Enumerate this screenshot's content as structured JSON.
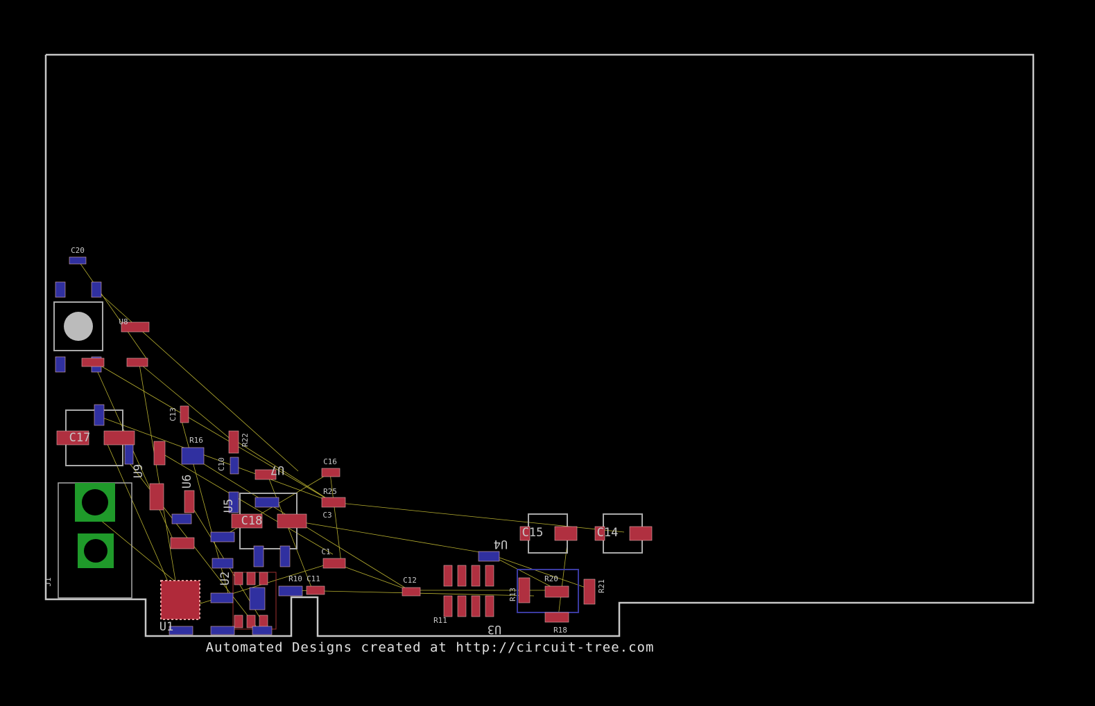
{
  "board": {
    "footer": "Automated Designs created at http://circuit-tree.com",
    "labels": [
      "C20",
      "U8",
      "C17",
      "J1",
      "U1",
      "C13",
      "R16",
      "R22",
      "C10",
      "U9",
      "U6",
      "U5",
      "C18",
      "U7",
      "C16",
      "R25",
      "C3",
      "C1",
      "C11",
      "R10",
      "C12",
      "U3",
      "R11",
      "R13",
      "R20",
      "R21",
      "R18",
      "C15",
      "C14",
      "U4",
      "U2"
    ]
  }
}
